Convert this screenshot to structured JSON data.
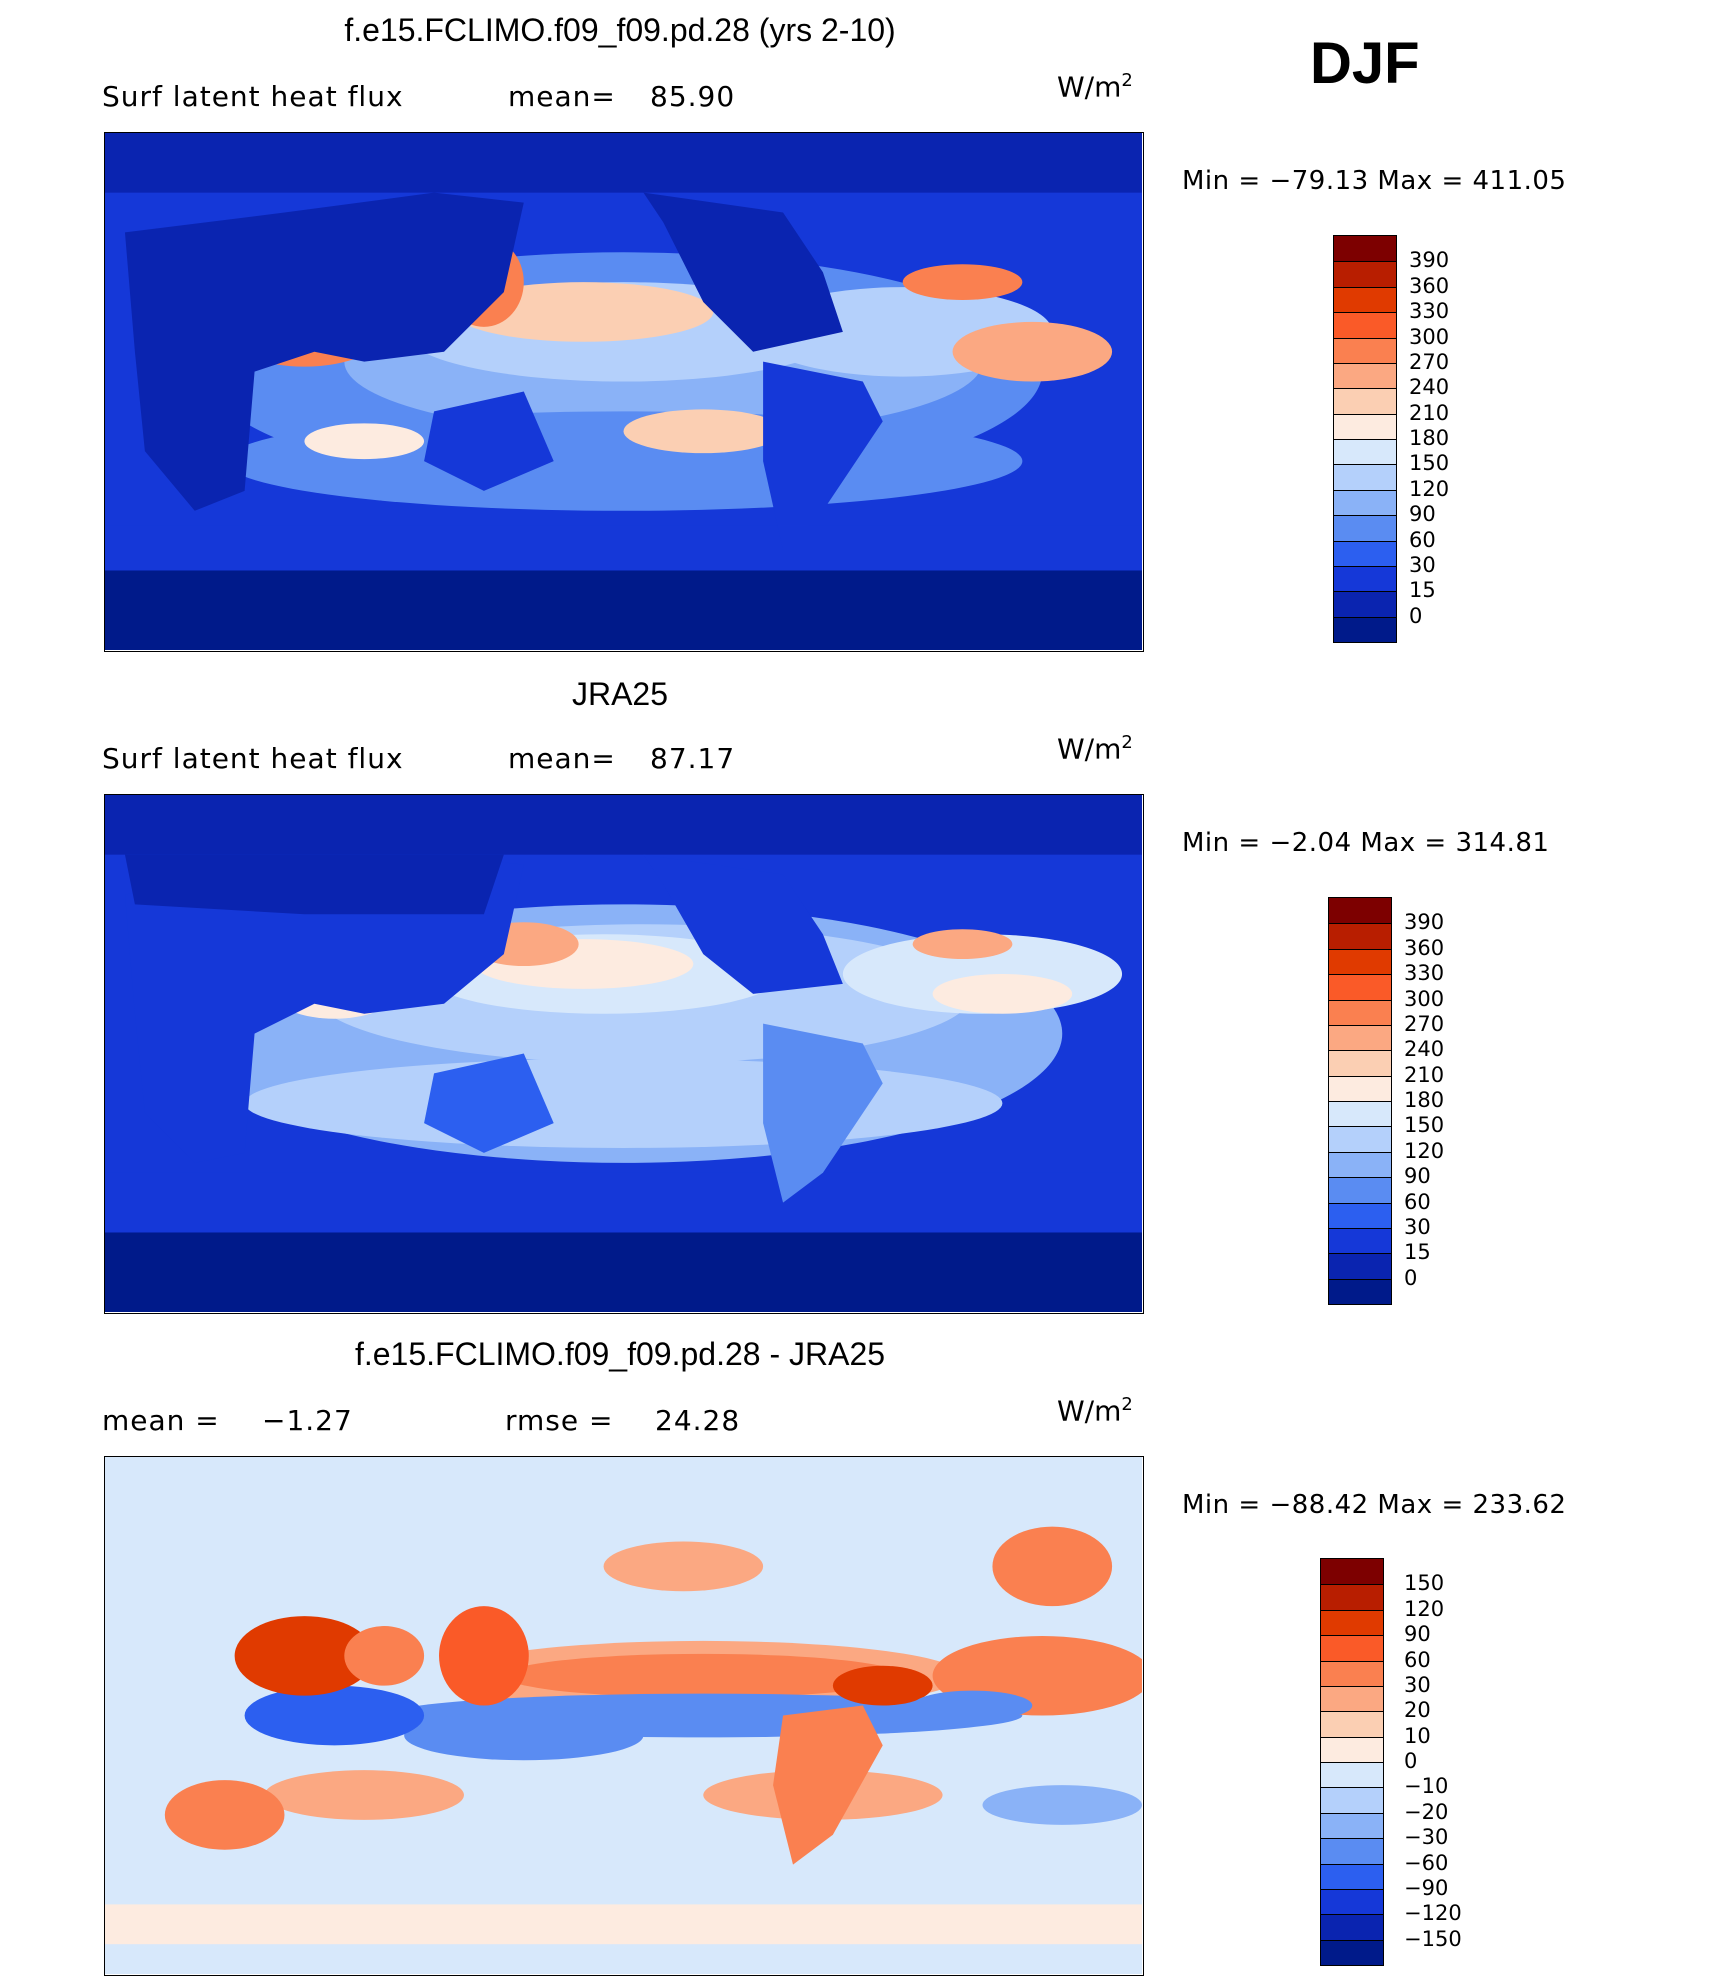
{
  "season": "DJF",
  "chart_data": [
    {
      "type": "heatmap",
      "title": "f.e15.FCLIMO.f09_f09.pd.28 (yrs 2-10)",
      "variable": "Surf latent heat flux",
      "stat_label": "mean=",
      "stat_value": "85.90",
      "units": "W/m",
      "units_sup": "2",
      "min_text": "Min =  −79.13 Max =  411.05",
      "min": -79.13,
      "max": 411.05,
      "legend_labels": [
        "390",
        "360",
        "330",
        "300",
        "270",
        "240",
        "210",
        "180",
        "150",
        "120",
        "90",
        "60",
        "30",
        "15",
        "0"
      ],
      "legend_colors": [
        "#7d0000",
        "#b81e00",
        "#e03a00",
        "#fa5a28",
        "#fa8050",
        "#fba882",
        "#fbcfb3",
        "#fdebe0",
        "#d7e8fb",
        "#b4d0fb",
        "#8ab2f7",
        "#5a8cf2",
        "#2c5ff0",
        "#1538d8",
        "#0a24b0",
        "#001a8a"
      ]
    },
    {
      "type": "heatmap",
      "title": "JRA25",
      "variable": "Surf latent heat flux",
      "stat_label": "mean=",
      "stat_value": "87.17",
      "units": "W/m",
      "units_sup": "2",
      "min_text": "Min =   −2.04 Max =  314.81",
      "min": -2.04,
      "max": 314.81,
      "legend_labels": [
        "390",
        "360",
        "330",
        "300",
        "270",
        "240",
        "210",
        "180",
        "150",
        "120",
        "90",
        "60",
        "30",
        "15",
        "0"
      ],
      "legend_colors": [
        "#7d0000",
        "#b81e00",
        "#e03a00",
        "#fa5a28",
        "#fa8050",
        "#fba882",
        "#fbcfb3",
        "#fdebe0",
        "#d7e8fb",
        "#b4d0fb",
        "#8ab2f7",
        "#5a8cf2",
        "#2c5ff0",
        "#1538d8",
        "#0a24b0",
        "#001a8a"
      ]
    },
    {
      "type": "heatmap",
      "title": "f.e15.FCLIMO.f09_f09.pd.28 - JRA25",
      "mean_label": "mean =",
      "mean_value": "−1.27",
      "rmse_label": "rmse =",
      "rmse_value": "24.28",
      "units": "W/m",
      "units_sup": "2",
      "min_text": "Min =  −88.42 Max =  233.62",
      "min": -88.42,
      "max": 233.62,
      "legend_labels": [
        "150",
        "120",
        "90",
        "60",
        "30",
        "20",
        "10",
        "0",
        "−10",
        "−20",
        "−30",
        "−60",
        "−90",
        "−120",
        "−150"
      ],
      "legend_colors": [
        "#7d0000",
        "#b81e00",
        "#e03a00",
        "#fa5a28",
        "#fa8050",
        "#fba882",
        "#fbcfb3",
        "#fdebe0",
        "#d7e8fb",
        "#b4d0fb",
        "#8ab2f7",
        "#5a8cf2",
        "#2c5ff0",
        "#1538d8",
        "#0a24b0",
        "#001a8a"
      ]
    }
  ]
}
